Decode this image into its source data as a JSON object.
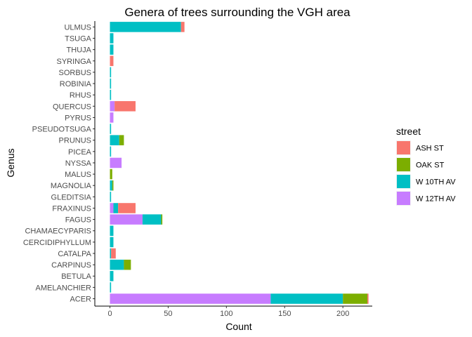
{
  "chart_data": {
    "type": "bar",
    "orientation": "horizontal",
    "stacked": true,
    "title": "Genera of trees surrounding the VGH area",
    "xlabel": "Count",
    "ylabel": "Genus",
    "xlim": [
      0,
      225
    ],
    "xticks": [
      0,
      50,
      100,
      150,
      200
    ],
    "grid": false,
    "legend": {
      "title": "street",
      "position": "right"
    },
    "categories": [
      "ACER",
      "AMELANCHIER",
      "BETULA",
      "CARPINUS",
      "CATALPA",
      "CERCIDIPHYLLUM",
      "CHAMAECYPARIS",
      "FAGUS",
      "FRAXINUS",
      "GLEDITSIA",
      "MAGNOLIA",
      "MALUS",
      "NYSSA",
      "PICEA",
      "PRUNUS",
      "PSEUDOTSUGA",
      "PYRUS",
      "QUERCUS",
      "RHUS",
      "ROBINIA",
      "SORBUS",
      "SYRINGA",
      "THUJA",
      "TSUGA",
      "ULMUS"
    ],
    "series": [
      {
        "name": "ASH ST",
        "color": "#F8766D",
        "values": [
          1,
          0,
          0,
          0,
          4,
          0,
          0,
          0,
          15,
          0,
          0,
          0,
          0,
          0,
          0,
          0,
          0,
          18,
          0,
          0,
          0,
          3,
          0,
          0,
          3
        ]
      },
      {
        "name": "OAK ST",
        "color": "#7CAE00",
        "values": [
          21,
          0,
          0,
          6,
          0,
          0,
          0,
          1,
          0,
          0,
          1,
          2,
          0,
          0,
          4,
          0,
          0,
          0,
          0,
          0,
          0,
          0,
          0,
          0,
          0
        ]
      },
      {
        "name": "W 10TH AV",
        "color": "#00BFC4",
        "values": [
          62,
          1,
          3,
          12,
          1,
          3,
          3,
          16,
          4,
          1,
          2,
          0,
          0,
          1,
          8,
          1,
          0,
          0,
          1,
          1,
          1,
          0,
          3,
          3,
          61
        ]
      },
      {
        "name": "W 12TH AV",
        "color": "#C77CFF",
        "values": [
          138,
          0,
          0,
          0,
          0,
          0,
          0,
          28,
          3,
          0,
          0,
          0,
          10,
          0,
          0,
          0,
          3,
          4,
          0,
          0,
          0,
          0,
          0,
          0,
          0
        ]
      }
    ]
  }
}
